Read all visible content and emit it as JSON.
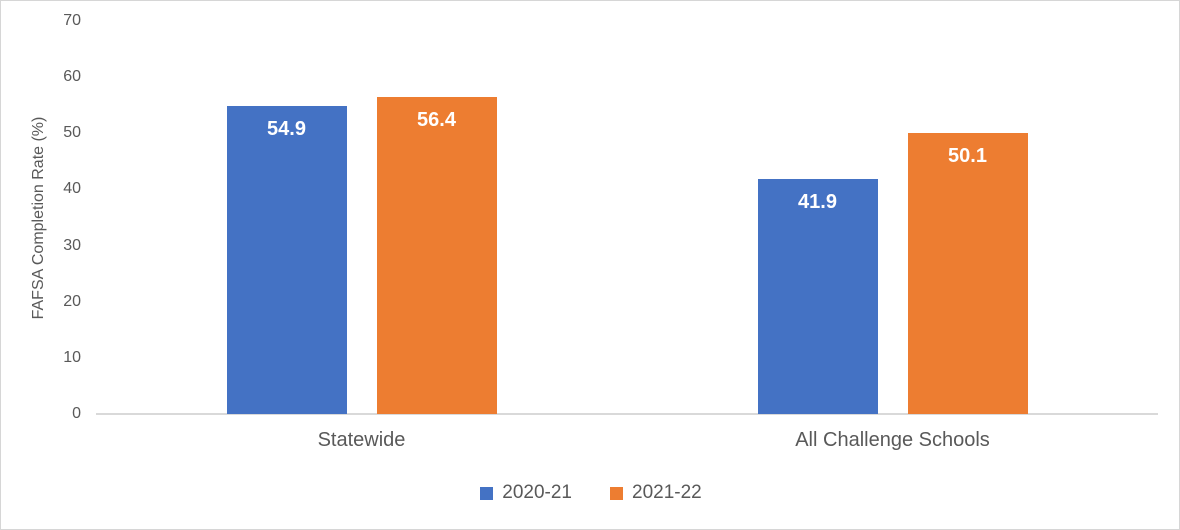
{
  "chart_data": {
    "type": "bar",
    "categories": [
      "Statewide",
      "All Challenge Schools"
    ],
    "series": [
      {
        "name": "2020-21",
        "color": "#4472C4",
        "values": [
          54.9,
          41.9
        ]
      },
      {
        "name": "2021-22",
        "color": "#ED7D31",
        "values": [
          56.4,
          50.1
        ]
      }
    ],
    "title": "",
    "xlabel": "",
    "ylabel": "FAFSA Completion Rate (%)",
    "ylim": [
      0,
      70
    ],
    "yticks": [
      0,
      10,
      20,
      30,
      40,
      50,
      60,
      70
    ],
    "grid": false,
    "legend_position": "bottom",
    "data_labels_shown": true,
    "colors": {
      "axis_line": "#D9D9D9",
      "axis_text": "#595959",
      "data_label_text": "#FFFFFF"
    }
  }
}
